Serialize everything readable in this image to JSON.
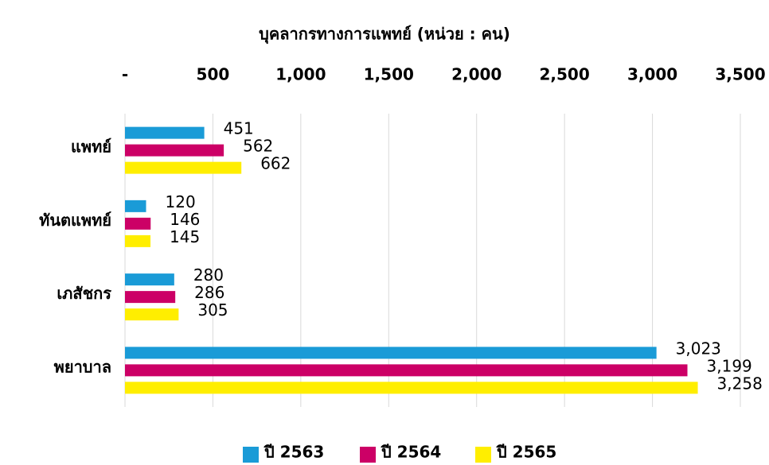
{
  "chart_data": {
    "type": "hbar",
    "title": "บุคลากรทางการแพทย์ (หน่วย : คน)",
    "categories": [
      "แพทย์",
      "ทันตแพทย์",
      "เภสัชกร",
      "พยาบาล"
    ],
    "series": [
      {
        "name": "ปี 2563",
        "color": "#1a9bd7",
        "values": [
          451,
          120,
          280,
          3023
        ],
        "value_labels": [
          "451",
          "120",
          "280",
          "3,023"
        ]
      },
      {
        "name": "ปี 2564",
        "color": "#cc0066",
        "values": [
          562,
          146,
          286,
          3199
        ],
        "value_labels": [
          "562",
          "146",
          "286",
          "3,199"
        ]
      },
      {
        "name": "ปี 2565",
        "color": "#ffee00",
        "values": [
          662,
          145,
          305,
          3258
        ],
        "value_labels": [
          "662",
          "145",
          "305",
          "3,258"
        ]
      }
    ],
    "xlim": [
      0,
      3500
    ],
    "xticks": [
      {
        "value": 0,
        "label": "-"
      },
      500,
      {
        "value": 1000,
        "label": "1,000"
      },
      {
        "value": 1500,
        "label": "1,500"
      },
      {
        "value": 2000,
        "label": "2,000"
      },
      {
        "value": 2500,
        "label": "2,500"
      },
      {
        "value": 3000,
        "label": "3,000"
      },
      {
        "value": 3500,
        "label": "3,500"
      }
    ],
    "grid": true,
    "legend": "bottom"
  }
}
